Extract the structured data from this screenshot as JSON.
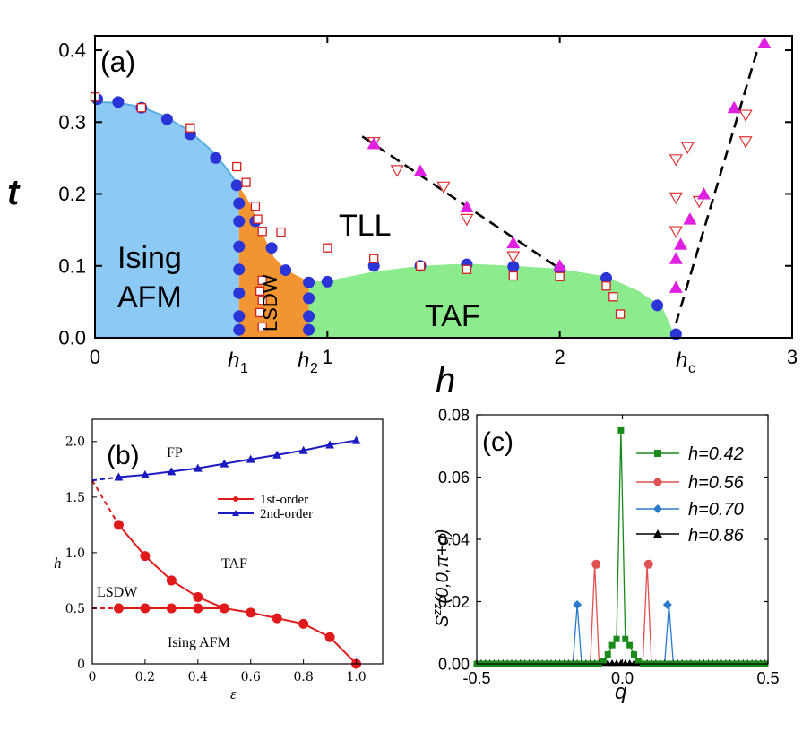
{
  "colors": {
    "ising": "#8ccaf5",
    "lsdw": "#f29431",
    "taf": "#8ceb8c",
    "ising_line": "#5aaee0",
    "blue_dot": "#2b34d6",
    "square": "#d42020",
    "tri_down": "#e03030",
    "tri_up": "#e020e0",
    "b_red": "#e01a1a",
    "b_blue": "#1a1ac0",
    "c_green": "#1a8a1a",
    "c_red": "#e05050",
    "c_blue": "#2a7acc",
    "c_black": "#000000"
  },
  "chart_data": [
    {
      "id": "a",
      "type": "scatter",
      "panel_label": "(a)",
      "xlabel": "h",
      "ylabel": "t",
      "xlim": [
        0,
        3
      ],
      "ylim": [
        0,
        0.42
      ],
      "xticks": [
        {
          "v": 0,
          "label": "0"
        },
        {
          "v": 1,
          "label": "1"
        },
        {
          "v": 2,
          "label": "2"
        },
        {
          "v": 3,
          "label": "3"
        }
      ],
      "yticks": [
        {
          "v": 0,
          "label": "0.0"
        },
        {
          "v": 0.1,
          "label": "0.1"
        },
        {
          "v": 0.2,
          "label": "0.2"
        },
        {
          "v": 0.3,
          "label": "0.3"
        },
        {
          "v": 0.4,
          "label": "0.4"
        }
      ],
      "critical_labels": [
        {
          "v": 0.62,
          "base": "h",
          "sub": "1"
        },
        {
          "v": 0.92,
          "base": "h",
          "sub": "2"
        },
        {
          "v": 2.5,
          "base": "h",
          "sub": "c"
        }
      ],
      "region_labels": [
        "Ising",
        "AFM",
        "LSDW",
        "TLL",
        "TAF"
      ],
      "ising_boundary": [
        [
          0,
          0.328
        ],
        [
          0.1,
          0.327
        ],
        [
          0.2,
          0.321
        ],
        [
          0.3,
          0.308
        ],
        [
          0.4,
          0.289
        ],
        [
          0.5,
          0.261
        ],
        [
          0.56,
          0.238
        ],
        [
          0.62,
          0.211
        ],
        [
          0.62,
          0
        ]
      ],
      "lsdw_boundary": [
        [
          0.62,
          0.211
        ],
        [
          0.67,
          0.185
        ],
        [
          0.72,
          0.145
        ],
        [
          0.77,
          0.112
        ],
        [
          0.82,
          0.095
        ],
        [
          0.86,
          0.088
        ],
        [
          0.92,
          0.078
        ],
        [
          0.92,
          0
        ]
      ],
      "taf_boundary": [
        [
          0.92,
          0
        ],
        [
          0.92,
          0.078
        ],
        [
          1.0,
          0.079
        ],
        [
          1.2,
          0.092
        ],
        [
          1.4,
          0.1
        ],
        [
          1.6,
          0.103
        ],
        [
          1.8,
          0.1
        ],
        [
          2.0,
          0.096
        ],
        [
          2.2,
          0.085
        ],
        [
          2.34,
          0.065
        ],
        [
          2.44,
          0.043
        ],
        [
          2.5,
          0
        ]
      ],
      "blue_circles": [
        [
          0.01,
          0.332
        ],
        [
          0.1,
          0.328
        ],
        [
          0.2,
          0.32
        ],
        [
          0.31,
          0.304
        ],
        [
          0.41,
          0.283
        ],
        [
          0.52,
          0.25
        ],
        [
          0.61,
          0.212
        ],
        [
          0.62,
          0.187
        ],
        [
          0.62,
          0.162
        ],
        [
          0.62,
          0.127
        ],
        [
          0.62,
          0.095
        ],
        [
          0.62,
          0.062
        ],
        [
          0.62,
          0.03
        ],
        [
          0.62,
          0.011
        ],
        [
          0.69,
          0.162
        ],
        [
          0.76,
          0.125
        ],
        [
          0.82,
          0.094
        ],
        [
          0.92,
          0.077
        ],
        [
          0.92,
          0.055
        ],
        [
          0.92,
          0.03
        ],
        [
          0.92,
          0.011
        ],
        [
          1.0,
          0.078
        ],
        [
          1.2,
          0.1
        ],
        [
          1.4,
          0.1
        ],
        [
          1.6,
          0.102
        ],
        [
          1.8,
          0.099
        ],
        [
          2.0,
          0.095
        ],
        [
          2.2,
          0.083
        ],
        [
          2.42,
          0.045
        ],
        [
          2.5,
          0.005
        ]
      ],
      "open_squares": [
        [
          0.0,
          0.335
        ],
        [
          0.2,
          0.32
        ],
        [
          0.41,
          0.292
        ],
        [
          0.61,
          0.238
        ],
        [
          0.65,
          0.216
        ],
        [
          0.69,
          0.183
        ],
        [
          0.7,
          0.165
        ],
        [
          0.72,
          0.148
        ],
        [
          0.8,
          0.147
        ],
        [
          0.72,
          0.08
        ],
        [
          0.71,
          0.065
        ],
        [
          0.72,
          0.052
        ],
        [
          0.71,
          0.035
        ],
        [
          0.72,
          0.015
        ],
        [
          1.0,
          0.125
        ],
        [
          1.2,
          0.11
        ],
        [
          1.4,
          0.1
        ],
        [
          1.6,
          0.095
        ],
        [
          1.8,
          0.086
        ],
        [
          2.0,
          0.085
        ],
        [
          2.2,
          0.072
        ],
        [
          2.23,
          0.057
        ],
        [
          2.26,
          0.033
        ]
      ],
      "triangles_down": [
        [
          1.2,
          0.272
        ],
        [
          1.3,
          0.233
        ],
        [
          1.5,
          0.21
        ],
        [
          1.6,
          0.165
        ],
        [
          1.8,
          0.113
        ],
        [
          2.5,
          0.248
        ],
        [
          2.5,
          0.195
        ],
        [
          2.55,
          0.265
        ],
        [
          2.6,
          0.19
        ],
        [
          2.5,
          0.148
        ],
        [
          2.8,
          0.273
        ],
        [
          2.8,
          0.31
        ]
      ],
      "triangles_up": [
        [
          1.2,
          0.27
        ],
        [
          1.4,
          0.232
        ],
        [
          1.6,
          0.182
        ],
        [
          1.8,
          0.132
        ],
        [
          2.0,
          0.1
        ],
        [
          2.5,
          0.07
        ],
        [
          2.5,
          0.11
        ],
        [
          2.52,
          0.13
        ],
        [
          2.56,
          0.165
        ],
        [
          2.62,
          0.2
        ],
        [
          2.75,
          0.32
        ],
        [
          2.88,
          0.41
        ]
      ],
      "dashed_lines": [
        [
          [
            1.15,
            0.28
          ],
          [
            2.0,
            0.096
          ]
        ],
        [
          [
            2.5,
            0.02
          ],
          [
            2.85,
            0.4
          ]
        ]
      ]
    },
    {
      "id": "b",
      "type": "line",
      "panel_label": "(b)",
      "xlabel": "ε",
      "ylabel": "h",
      "xlim": [
        0,
        1.1
      ],
      "ylim": [
        0,
        2.2
      ],
      "xticks": [
        {
          "v": 0,
          "label": "0"
        },
        {
          "v": 0.2,
          "label": "0.2"
        },
        {
          "v": 0.4,
          "label": "0.4"
        },
        {
          "v": 0.6,
          "label": "0.6"
        },
        {
          "v": 0.8,
          "label": "0.8"
        },
        {
          "v": 1.0,
          "label": "1.0"
        }
      ],
      "yticks": [
        {
          "v": 0,
          "label": "0"
        },
        {
          "v": 0.5,
          "label": "0.5"
        },
        {
          "v": 1.0,
          "label": "1.0"
        },
        {
          "v": 1.5,
          "label": "1.5"
        },
        {
          "v": 2.0,
          "label": "2.0"
        }
      ],
      "region_labels": [
        "FP",
        "TAF",
        "LSDW",
        "Ising AFM"
      ],
      "series": [
        {
          "name": "1st-order",
          "color_key": "b_red",
          "marker": "circle",
          "x": [
            0.1,
            0.2,
            0.3,
            0.4,
            0.5,
            0.6,
            0.7,
            0.8,
            0.9,
            1.0
          ],
          "values": [
            1.25,
            0.97,
            0.75,
            0.6,
            0.5,
            0.46,
            0.41,
            0.36,
            0.24,
            0.0
          ]
        },
        {
          "name": "1st-order (LSDW)",
          "color_key": "b_red",
          "marker": "circle",
          "legend": false,
          "x": [
            0.1,
            0.2,
            0.3,
            0.4,
            0.5
          ],
          "values": [
            0.5,
            0.5,
            0.5,
            0.5,
            0.5
          ]
        },
        {
          "name": "2nd-order",
          "color_key": "b_blue",
          "marker": "triangle",
          "x": [
            0.1,
            0.2,
            0.3,
            0.4,
            0.5,
            0.6,
            0.7,
            0.8,
            0.9,
            1.0
          ],
          "values": [
            1.68,
            1.7,
            1.73,
            1.76,
            1.8,
            1.84,
            1.88,
            1.92,
            1.97,
            2.01
          ]
        }
      ],
      "dashed_lines": [
        {
          "color_key": "b_red",
          "points": [
            [
              0,
              1.65
            ],
            [
              0.1,
              1.25
            ]
          ]
        },
        {
          "color_key": "b_red",
          "points": [
            [
              0,
              0.5
            ],
            [
              0.1,
              0.5
            ]
          ]
        },
        {
          "color_key": "b_blue",
          "points": [
            [
              0,
              1.65
            ],
            [
              0.1,
              1.68
            ]
          ]
        }
      ],
      "legend": [
        "1st-order",
        "2nd-order"
      ]
    },
    {
      "id": "c",
      "type": "line",
      "panel_label": "(c)",
      "xlabel": "q",
      "ylabel": "Szz(0,0,π+q)",
      "ylabel_parts": {
        "base": "S",
        "sup": "zz",
        "arg": "(0,0,π+q)"
      },
      "xlim": [
        -0.5,
        0.5
      ],
      "ylim": [
        0,
        0.08
      ],
      "xticks": [
        {
          "v": -0.5,
          "label": "-0.5"
        },
        {
          "v": 0.0,
          "label": "0.0"
        },
        {
          "v": 0.5,
          "label": "0.5"
        }
      ],
      "yticks": [
        {
          "v": 0,
          "label": "0.00"
        },
        {
          "v": 0.02,
          "label": "0.02"
        },
        {
          "v": 0.04,
          "label": "0.04"
        },
        {
          "v": 0.06,
          "label": "0.06"
        },
        {
          "v": 0.08,
          "label": "0.08"
        }
      ],
      "series": [
        {
          "name": "h=0.42",
          "color_key": "c_green",
          "marker": "square",
          "x": [
            -0.06,
            -0.045,
            -0.03,
            -0.015,
            0.0,
            0.015,
            0.03,
            0.045,
            0.06
          ],
          "values": [
            0.001,
            0.003,
            0.006,
            0.008,
            0.075,
            0.008,
            0.006,
            0.003,
            0.001
          ]
        },
        {
          "name": "h=0.56",
          "color_key": "c_red",
          "marker": "circle",
          "x": [
            -0.09,
            0.09
          ],
          "values": [
            0.032,
            0.032
          ]
        },
        {
          "name": "h=0.70",
          "color_key": "c_blue",
          "marker": "diamond",
          "x": [
            -0.155,
            0.155
          ],
          "values": [
            0.019,
            0.019
          ]
        },
        {
          "name": "h=0.86",
          "color_key": "c_black",
          "marker": "triangle",
          "x": [],
          "values": []
        }
      ],
      "legend": [
        "h=0.42",
        "h=0.56",
        "h=0.70",
        "h=0.86"
      ]
    }
  ]
}
